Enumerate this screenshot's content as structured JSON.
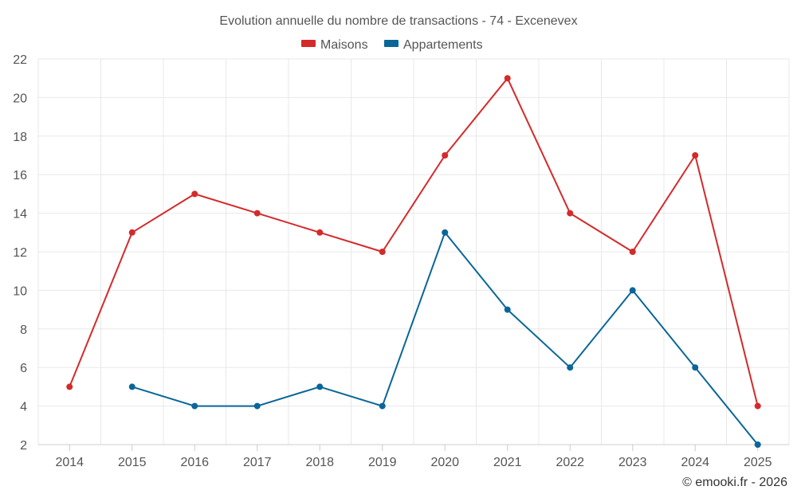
{
  "chart_data": {
    "type": "line",
    "title": "Evolution annuelle du nombre de transactions - 74 - Excenevex",
    "categories": [
      "2014",
      "2015",
      "2016",
      "2017",
      "2018",
      "2019",
      "2020",
      "2021",
      "2022",
      "2023",
      "2024",
      "2025"
    ],
    "ylim": [
      2,
      22
    ],
    "yticks": [
      2,
      4,
      6,
      8,
      10,
      12,
      14,
      16,
      18,
      20,
      22
    ],
    "grid": true,
    "legend_position": "top-center",
    "series": [
      {
        "name": "Maisons",
        "color": "#d42a2a",
        "values": [
          5,
          13,
          15,
          14,
          13,
          12,
          17,
          21,
          14,
          12,
          17,
          4
        ]
      },
      {
        "name": "Appartements",
        "color": "#0a6698",
        "values": [
          null,
          5,
          4,
          4,
          5,
          4,
          13,
          9,
          6,
          10,
          6,
          2
        ]
      }
    ],
    "credit": "© emooki.fr - 2026"
  }
}
